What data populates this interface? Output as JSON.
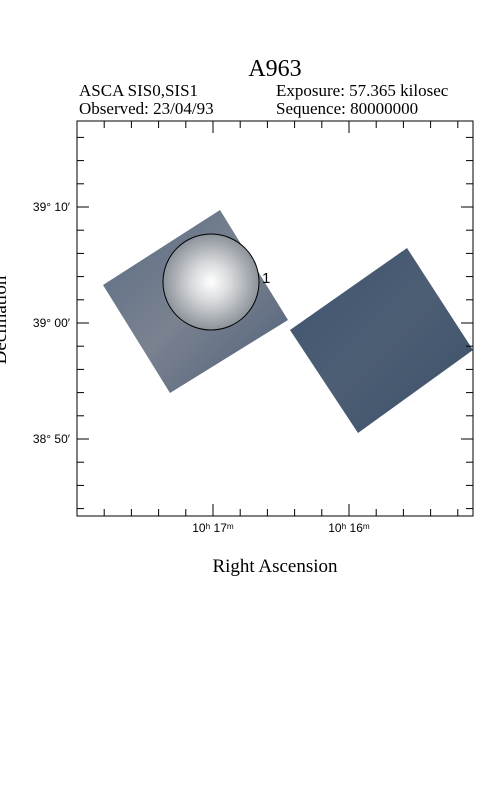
{
  "header": {
    "title": "A963",
    "instrument": "ASCA SIS0,SIS1",
    "exposure": "Exposure: 57.365 kilosec",
    "observed": "Observed: 23/04/93",
    "sequence": "Sequence: 80000000"
  },
  "axes": {
    "x_label": "Right Ascension",
    "y_label": "Declination",
    "x_ticks": [
      "10ʰ 17ᵐ",
      "10ʰ 16ᵐ"
    ],
    "y_ticks": [
      "39° 10′",
      "39° 00′",
      "38° 50′"
    ]
  },
  "source_label": "1"
}
